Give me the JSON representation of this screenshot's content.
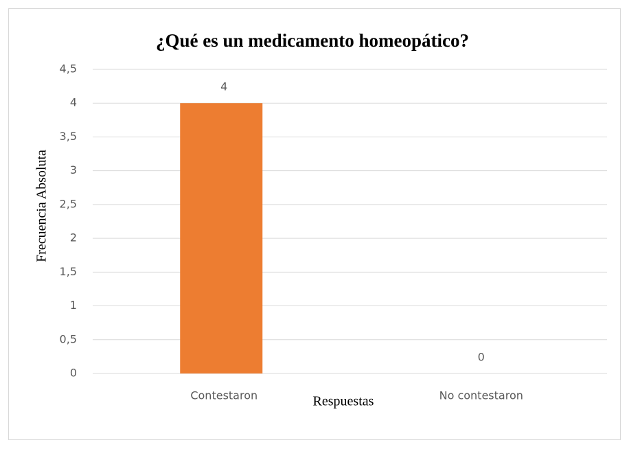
{
  "chart_data": {
    "type": "bar",
    "title": "¿Qué es un medicamento homeopático?",
    "x_label": "Respuestas",
    "y_label": "Frecuencia Absoluta",
    "categories": [
      "Contestaron",
      "No contestaron"
    ],
    "values": [
      4,
      0
    ],
    "color": "#ed7d31",
    "ylim": [
      0,
      4.5
    ],
    "yticks": [
      0,
      {
        "value": 0.5,
        "label": "0,5"
      },
      1,
      {
        "value": 1.5,
        "label": "1,5"
      },
      2,
      {
        "value": 2.5,
        "label": "2,5"
      },
      3,
      {
        "value": 3.5,
        "label": "3,5"
      },
      4,
      {
        "value": 4.5,
        "label": "4,5"
      }
    ],
    "grid": true
  }
}
